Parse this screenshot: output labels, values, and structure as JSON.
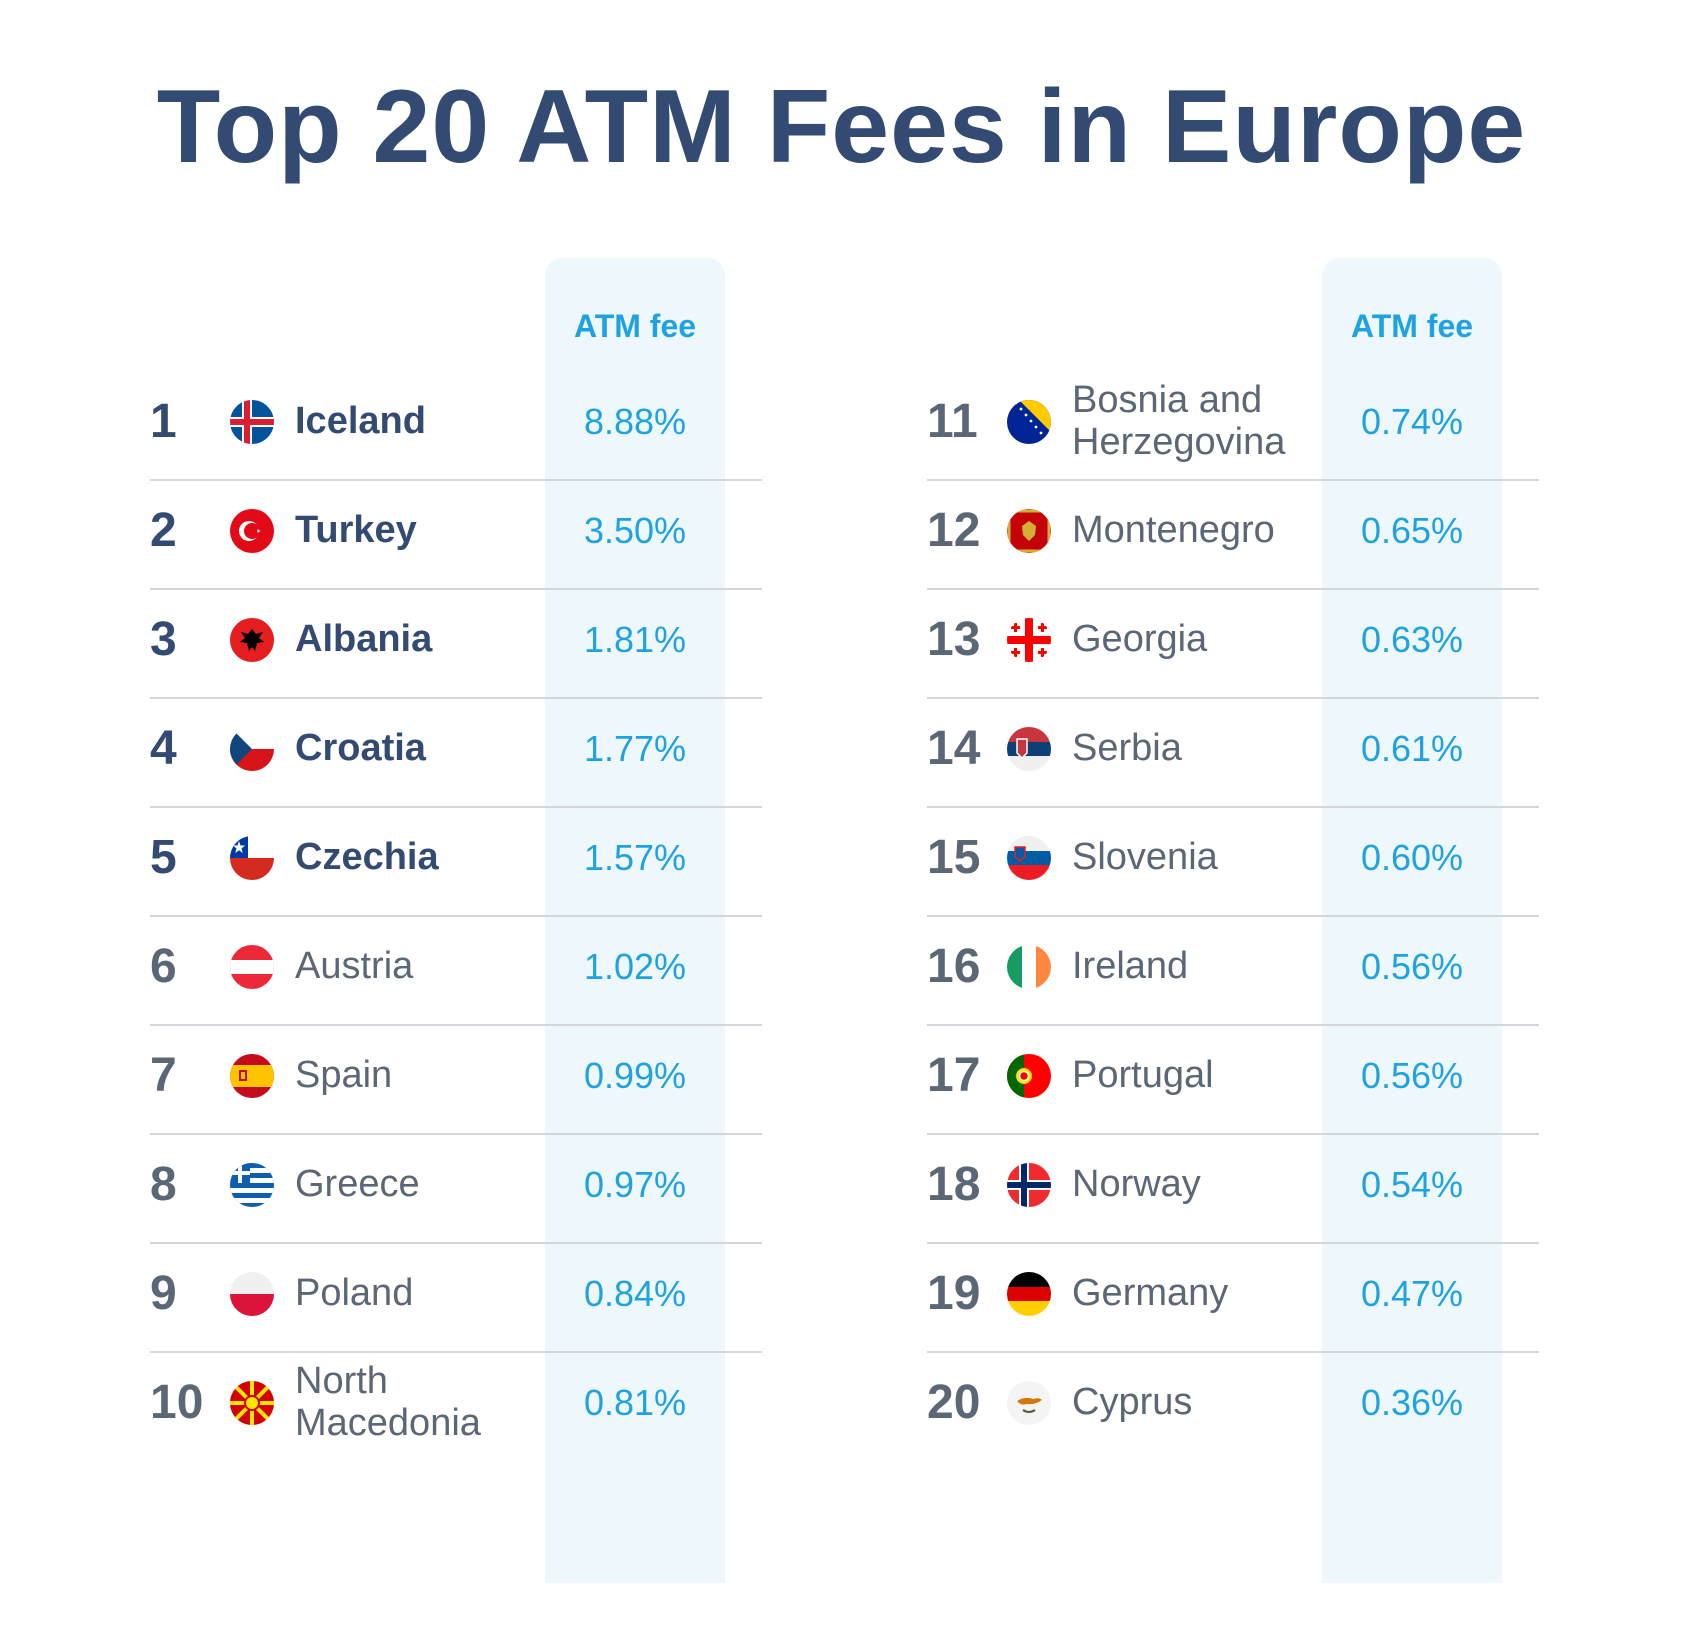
{
  "title": "Top 20 ATM Fees in Europe",
  "chart_data": {
    "type": "table",
    "title": "Top 20 ATM Fees in Europe",
    "columns": [
      "",
      "",
      "ATM fee"
    ],
    "colors": {
      "title": "#334a72",
      "fee": "#1ea3e0",
      "highlight": "#eef7fc"
    },
    "rows": [
      {
        "rank": "1",
        "country": "Iceland",
        "fee": "8.88%",
        "value": 8.88,
        "flag": "iceland-flag-icon"
      },
      {
        "rank": "2",
        "country": "Turkey",
        "fee": "3.50%",
        "value": 3.5,
        "flag": "turkey-flag-icon"
      },
      {
        "rank": "3",
        "country": "Albania",
        "fee": "1.81%",
        "value": 1.81,
        "flag": "albania-flag-icon"
      },
      {
        "rank": "4",
        "country": "Croatia",
        "fee": "1.77%",
        "value": 1.77,
        "flag": "czech-style-flag-icon"
      },
      {
        "rank": "5",
        "country": "Czechia",
        "fee": "1.57%",
        "value": 1.57,
        "flag": "chile-style-flag-icon"
      },
      {
        "rank": "6",
        "country": "Austria",
        "fee": "1.02%",
        "value": 1.02,
        "flag": "austria-flag-icon"
      },
      {
        "rank": "7",
        "country": "Spain",
        "fee": "0.99%",
        "value": 0.99,
        "flag": "spain-flag-icon"
      },
      {
        "rank": "8",
        "country": "Greece",
        "fee": "0.97%",
        "value": 0.97,
        "flag": "greece-flag-icon"
      },
      {
        "rank": "9",
        "country": "Poland",
        "fee": "0.84%",
        "value": 0.84,
        "flag": "poland-flag-icon"
      },
      {
        "rank": "10",
        "country": "North Macedonia",
        "fee": "0.81%",
        "value": 0.81,
        "flag": "north-macedonia-flag-icon"
      },
      {
        "rank": "11",
        "country": "Bosnia and Herzegovina",
        "fee": "0.74%",
        "value": 0.74,
        "flag": "bosnia-flag-icon"
      },
      {
        "rank": "12",
        "country": "Montenegro",
        "fee": "0.65%",
        "value": 0.65,
        "flag": "montenegro-flag-icon"
      },
      {
        "rank": "13",
        "country": "Georgia",
        "fee": "0.63%",
        "value": 0.63,
        "flag": "georgia-flag-icon"
      },
      {
        "rank": "14",
        "country": "Serbia",
        "fee": "0.61%",
        "value": 0.61,
        "flag": "serbia-flag-icon"
      },
      {
        "rank": "15",
        "country": "Slovenia",
        "fee": "0.60%",
        "value": 0.6,
        "flag": "slovenia-flag-icon"
      },
      {
        "rank": "16",
        "country": "Ireland",
        "fee": "0.56%",
        "value": 0.56,
        "flag": "ireland-flag-icon"
      },
      {
        "rank": "17",
        "country": "Portugal",
        "fee": "0.56%",
        "value": 0.56,
        "flag": "portugal-flag-icon"
      },
      {
        "rank": "18",
        "country": "Norway",
        "fee": "0.54%",
        "value": 0.54,
        "flag": "norway-flag-icon"
      },
      {
        "rank": "19",
        "country": "Germany",
        "fee": "0.47%",
        "value": 0.47,
        "flag": "germany-flag-icon"
      },
      {
        "rank": "20",
        "country": "Cyprus",
        "fee": "0.36%",
        "value": 0.36,
        "flag": "cyprus-flag-icon"
      }
    ]
  }
}
